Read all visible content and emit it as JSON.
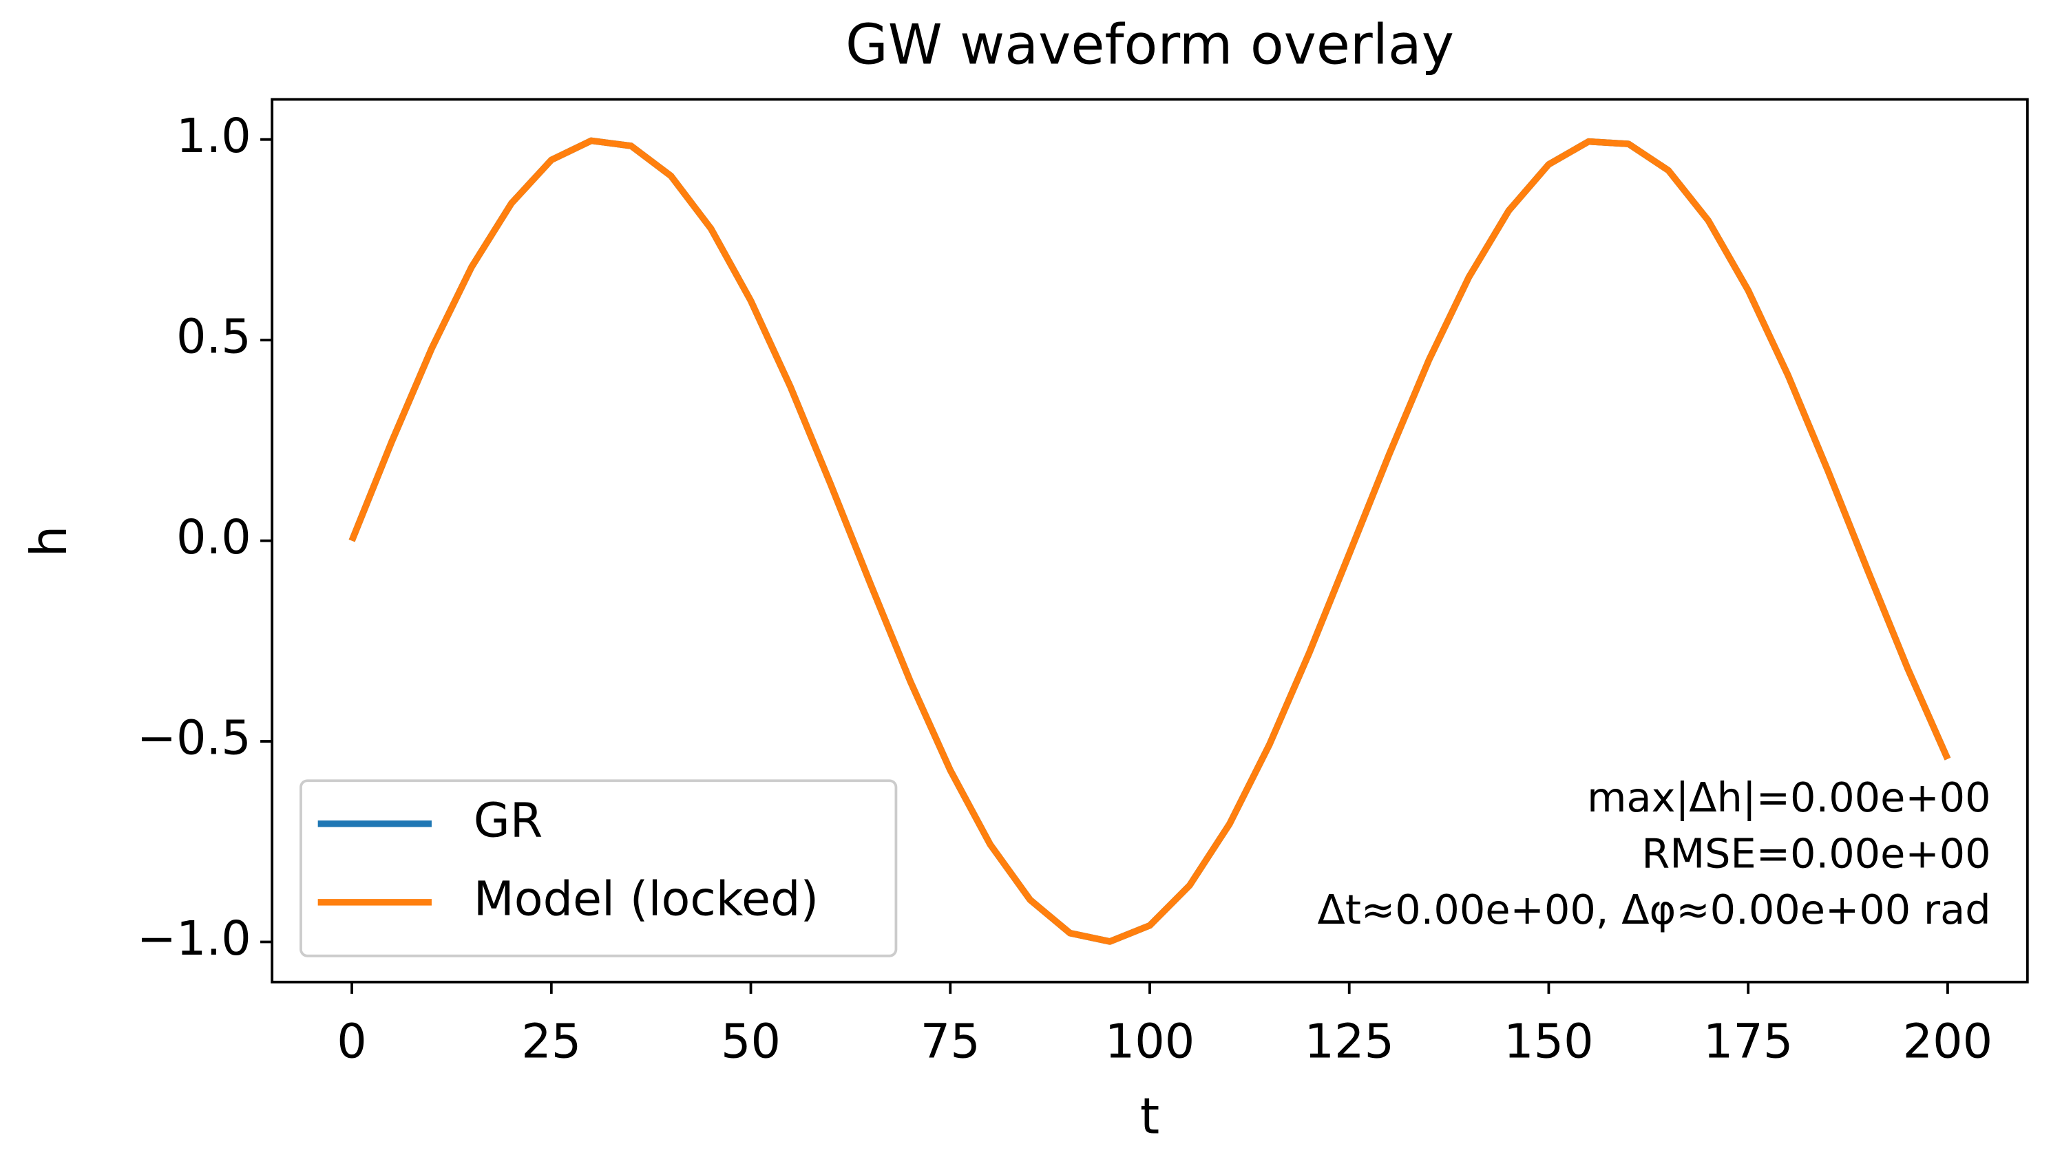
{
  "chart_data": {
    "type": "line",
    "title": "GW waveform overlay",
    "x_label": "t",
    "y_label": "h",
    "x": [
      0,
      5,
      10,
      15,
      20,
      25,
      30,
      35,
      40,
      45,
      50,
      55,
      60,
      65,
      70,
      75,
      80,
      85,
      90,
      95,
      100,
      105,
      110,
      115,
      120,
      125,
      130,
      135,
      140,
      145,
      150,
      155,
      160,
      165,
      170,
      175,
      180,
      185,
      190,
      195,
      200
    ],
    "series": [
      {
        "name": "GR",
        "color": "#1f77b4",
        "values": [
          0,
          0.247,
          0.479,
          0.682,
          0.841,
          0.949,
          0.997,
          0.984,
          0.909,
          0.778,
          0.598,
          0.382,
          0.141,
          -0.108,
          -0.351,
          -0.572,
          -0.757,
          -0.895,
          -0.978,
          -0.999,
          -0.959,
          -0.859,
          -0.706,
          -0.508,
          -0.279,
          -0.033,
          0.215,
          0.451,
          0.657,
          0.823,
          0.938,
          0.995,
          0.989,
          0.923,
          0.798,
          0.624,
          0.412,
          0.174,
          -0.075,
          -0.319,
          -0.544
        ]
      },
      {
        "name": "Model (locked)",
        "color": "#ff7f0e",
        "values": [
          0,
          0.247,
          0.479,
          0.682,
          0.841,
          0.949,
          0.997,
          0.984,
          0.909,
          0.778,
          0.598,
          0.382,
          0.141,
          -0.108,
          -0.351,
          -0.572,
          -0.757,
          -0.895,
          -0.978,
          -0.999,
          -0.959,
          -0.859,
          -0.706,
          -0.508,
          -0.279,
          -0.033,
          0.215,
          0.451,
          0.657,
          0.823,
          0.938,
          0.995,
          0.989,
          0.923,
          0.798,
          0.624,
          0.412,
          0.174,
          -0.075,
          -0.319,
          -0.544
        ]
      }
    ],
    "xlim": [
      -10,
      210
    ],
    "xticks": [
      0,
      25,
      50,
      75,
      100,
      125,
      150,
      175,
      200
    ],
    "ylim": [
      -1.1,
      1.1
    ],
    "yticks": [
      {
        "value": -1.0,
        "label": "−1.0"
      },
      {
        "value": -0.5,
        "label": "−0.5"
      },
      {
        "value": 0.0,
        "label": "0.0"
      },
      {
        "value": 0.5,
        "label": "0.5"
      },
      {
        "value": 1.0,
        "label": "1.0"
      }
    ],
    "grid": false,
    "legend": "lower left",
    "annotations": [
      "max|Δh|=0.00e+00",
      "RMSE=0.00e+00",
      "Δt≈0.00e+00,  Δφ≈0.00e+00 rad"
    ]
  }
}
